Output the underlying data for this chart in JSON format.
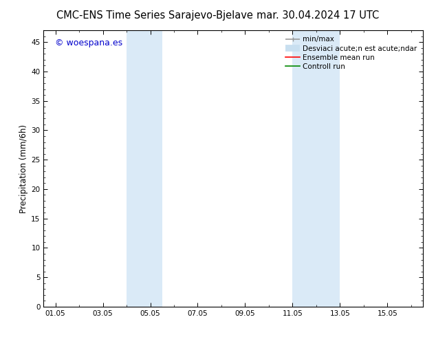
{
  "title_left": "CMC-ENS Time Series Sarajevo-Bjelave",
  "title_right": "mar. 30.04.2024 17 UTC",
  "xlabel_ticks": [
    "01.05",
    "03.05",
    "05.05",
    "07.05",
    "09.05",
    "11.05",
    "13.05",
    "15.05"
  ],
  "tick_positions": [
    1,
    3,
    5,
    7,
    9,
    11,
    13,
    15
  ],
  "xlim": [
    0.5,
    16.5
  ],
  "ylabel": "Precipitation (mm/6h)",
  "ylim": [
    0,
    47
  ],
  "yticks": [
    0,
    5,
    10,
    15,
    20,
    25,
    30,
    35,
    40,
    45
  ],
  "background_color": "#ffffff",
  "plot_bg_color": "#ffffff",
  "shaded_regions": [
    {
      "xstart": 4.0,
      "xend": 5.5,
      "color": "#daeaf7"
    },
    {
      "xstart": 11.0,
      "xend": 13.0,
      "color": "#daeaf7"
    }
  ],
  "watermark_text": "© woespana.es",
  "watermark_color": "#0000cc",
  "legend_labels": [
    "min/max",
    "Desviaci acute;n est acute;ndar",
    "Ensemble mean run",
    "Controll run"
  ],
  "legend_colors": [
    "#999999",
    "#c8dff0",
    "#ff0000",
    "#008800"
  ],
  "legend_lw": [
    1.2,
    7,
    1.2,
    1.2
  ],
  "title_fontsize": 10.5,
  "tick_fontsize": 7.5,
  "ylabel_fontsize": 8.5,
  "legend_fontsize": 7.5,
  "watermark_fontsize": 9
}
